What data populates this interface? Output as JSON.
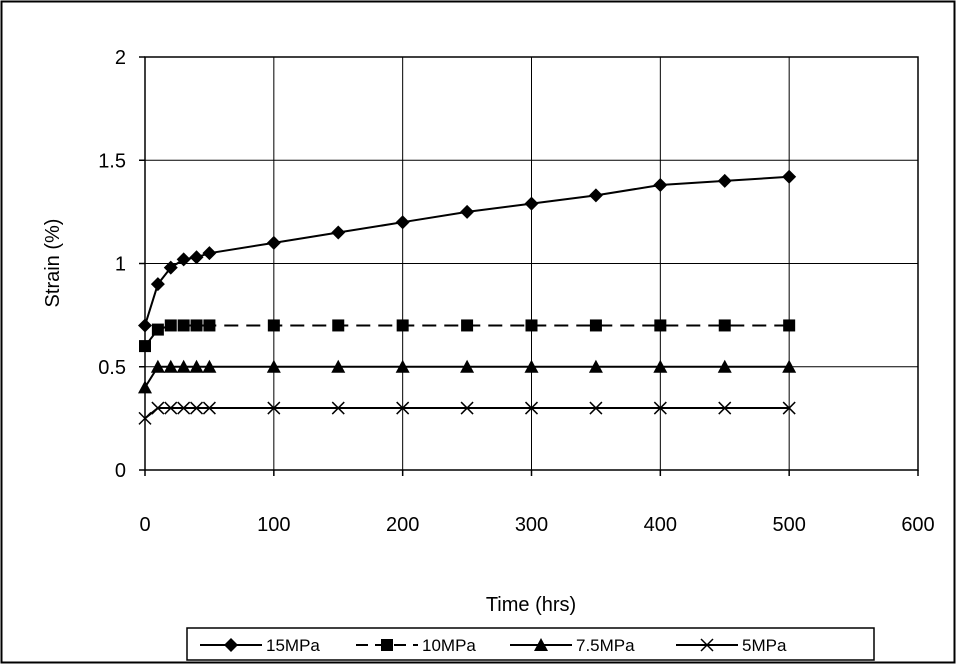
{
  "chart_data": {
    "type": "line",
    "title": "",
    "xlabel": "Time (hrs)",
    "ylabel": "Strain (%)",
    "xlim": [
      0,
      600
    ],
    "ylim": [
      0,
      2
    ],
    "xticks": [
      0,
      100,
      200,
      300,
      400,
      500,
      600
    ],
    "xtick_labels": [
      "0",
      "100",
      "200",
      "300",
      "400",
      "500",
      "600"
    ],
    "yticks": [
      0,
      0.5,
      1,
      1.5,
      2
    ],
    "ytick_labels": [
      "0",
      "0.5",
      "1",
      "1.5",
      "2"
    ],
    "grid": true,
    "legend_position": "bottom",
    "series": [
      {
        "name": "15MPa",
        "marker": "diamond",
        "line_style": "solid",
        "color": "#000000",
        "x": [
          0,
          10,
          20,
          30,
          40,
          50,
          100,
          150,
          200,
          250,
          300,
          350,
          400,
          450,
          500
        ],
        "y": [
          0.7,
          0.9,
          0.98,
          1.02,
          1.03,
          1.05,
          1.1,
          1.15,
          1.2,
          1.25,
          1.29,
          1.33,
          1.38,
          1.4,
          1.42
        ]
      },
      {
        "name": "10MPa",
        "marker": "square",
        "line_style": "dashed",
        "color": "#000000",
        "x": [
          0,
          10,
          20,
          30,
          40,
          50,
          100,
          150,
          200,
          250,
          300,
          350,
          400,
          450,
          500
        ],
        "y": [
          0.6,
          0.68,
          0.7,
          0.7,
          0.7,
          0.7,
          0.7,
          0.7,
          0.7,
          0.7,
          0.7,
          0.7,
          0.7,
          0.7,
          0.7
        ]
      },
      {
        "name": "7.5MPa",
        "marker": "triangle",
        "line_style": "solid",
        "color": "#000000",
        "x": [
          0,
          10,
          20,
          30,
          40,
          50,
          100,
          150,
          200,
          250,
          300,
          350,
          400,
          450,
          500
        ],
        "y": [
          0.4,
          0.5,
          0.5,
          0.5,
          0.5,
          0.5,
          0.5,
          0.5,
          0.5,
          0.5,
          0.5,
          0.5,
          0.5,
          0.5,
          0.5
        ]
      },
      {
        "name": "5MPa",
        "marker": "x",
        "line_style": "solid",
        "color": "#000000",
        "x": [
          0,
          10,
          20,
          30,
          40,
          50,
          100,
          150,
          200,
          250,
          300,
          350,
          400,
          450,
          500
        ],
        "y": [
          0.25,
          0.3,
          0.3,
          0.3,
          0.3,
          0.3,
          0.3,
          0.3,
          0.3,
          0.3,
          0.3,
          0.3,
          0.3,
          0.3,
          0.3
        ]
      }
    ]
  }
}
